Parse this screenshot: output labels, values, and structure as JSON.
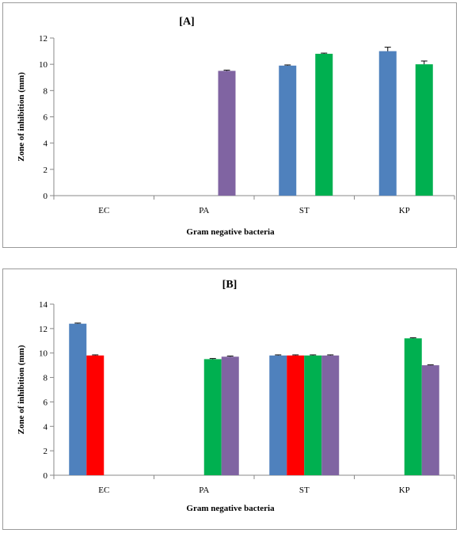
{
  "chart_data": [
    {
      "type": "bar",
      "title": "[A]",
      "xlabel": "Gram negative bacteria",
      "ylabel": "Zone of inhibition (mm)",
      "ylim": [
        0,
        12
      ],
      "yticks": [
        0,
        2,
        4,
        6,
        8,
        10,
        12
      ],
      "categories": [
        "EC",
        "PA",
        "ST",
        "KP"
      ],
      "series": [
        {
          "color": "#4f81bd",
          "values": [
            0,
            0,
            9.9,
            11.0
          ],
          "errors": [
            0,
            0,
            0.05,
            0.3
          ]
        },
        {
          "color": "#00b050",
          "values": [
            0,
            0,
            10.8,
            10.0
          ],
          "errors": [
            0,
            0,
            0.05,
            0.25
          ]
        },
        {
          "color": "#8064a2",
          "values": [
            0,
            9.5,
            0,
            0
          ],
          "errors": [
            0,
            0.05,
            0,
            0
          ]
        }
      ],
      "grid": false
    },
    {
      "type": "bar",
      "title": "[B]",
      "xlabel": "Gram negative bacteria",
      "ylabel": "Zone of inhibition (mm)",
      "ylim": [
        0,
        14
      ],
      "yticks": [
        0,
        2,
        4,
        6,
        8,
        10,
        12,
        14
      ],
      "categories": [
        "EC",
        "PA",
        "ST",
        "KP"
      ],
      "series": [
        {
          "color": "#4f81bd",
          "values": [
            12.4,
            0,
            9.8,
            0
          ],
          "errors": [
            0.05,
            0,
            0.05,
            0
          ]
        },
        {
          "color": "#ff0000",
          "values": [
            9.8,
            0,
            9.8,
            0
          ],
          "errors": [
            0.05,
            0,
            0.05,
            0
          ]
        },
        {
          "color": "#00b050",
          "values": [
            0,
            9.5,
            9.8,
            11.2
          ],
          "errors": [
            0,
            0.05,
            0.05,
            0.05
          ]
        },
        {
          "color": "#8064a2",
          "values": [
            0,
            9.7,
            9.8,
            9.0
          ],
          "errors": [
            0,
            0.05,
            0.05,
            0.03
          ]
        }
      ],
      "grid": false
    }
  ]
}
